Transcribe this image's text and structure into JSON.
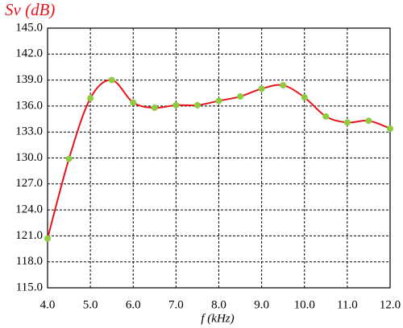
{
  "chart_data": {
    "type": "line",
    "title": "Sv (dB)",
    "x_label": "f (kHz)",
    "x": [
      4.0,
      4.5,
      5.0,
      5.5,
      6.0,
      6.5,
      7.0,
      7.5,
      8.0,
      8.5,
      9.0,
      9.5,
      10.0,
      10.5,
      11.0,
      11.5,
      12.0
    ],
    "series": [
      {
        "color": "#e8141b",
        "marker_color": "#8dcc3f",
        "values": [
          120.7,
          129.9,
          136.9,
          139.0,
          136.4,
          135.8,
          136.1,
          136.1,
          136.6,
          137.1,
          138.0,
          138.4,
          137.0,
          134.8,
          134.1,
          134.3,
          133.4
        ]
      }
    ],
    "xlim": [
      4.0,
      12.0
    ],
    "xticks": [
      {
        "value": 4,
        "label": "4.0"
      },
      {
        "value": 5,
        "label": "5.0"
      },
      {
        "value": 6,
        "label": "6.0"
      },
      {
        "value": 7,
        "label": "7.0"
      },
      {
        "value": 8,
        "label": "8.0"
      },
      {
        "value": 9,
        "label": "9.0"
      },
      {
        "value": 10,
        "label": "10.0"
      },
      {
        "value": 11,
        "label": "11.0"
      },
      {
        "value": 12,
        "label": "12.0"
      }
    ],
    "ylim": [
      115.0,
      145.0
    ],
    "yticks": [
      {
        "value": 115,
        "label": "115.0"
      },
      {
        "value": 118,
        "label": "118.0"
      },
      {
        "value": 121,
        "label": "121.0"
      },
      {
        "value": 124,
        "label": "124.0"
      },
      {
        "value": 127,
        "label": "127.0"
      },
      {
        "value": 130,
        "label": "130.0"
      },
      {
        "value": 133,
        "label": "133.0"
      },
      {
        "value": 136,
        "label": "136.0"
      },
      {
        "value": 139,
        "label": "139.0"
      },
      {
        "value": 142,
        "label": "142.0"
      },
      {
        "value": 145,
        "label": "145.0"
      }
    ],
    "grid": true
  }
}
